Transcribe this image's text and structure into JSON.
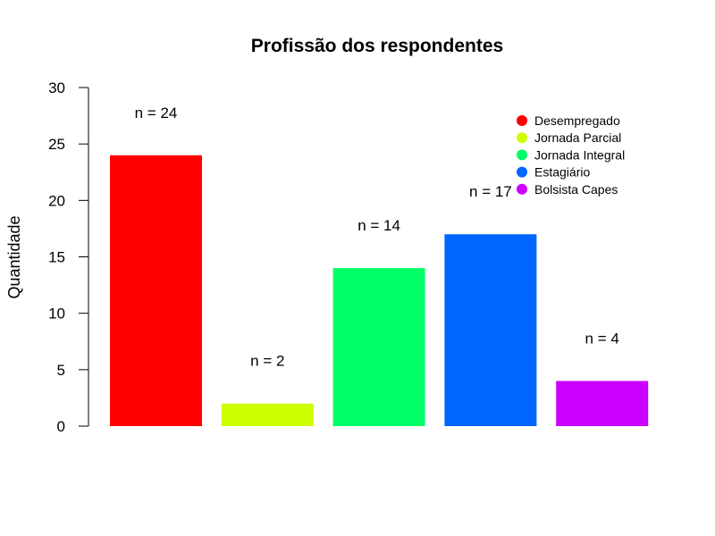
{
  "chart_data": {
    "type": "bar",
    "title": "Profissão dos respondentes",
    "xlabel": "",
    "ylabel": "Quantidade",
    "ylim": [
      0,
      30
    ],
    "yticks": [
      0,
      5,
      10,
      15,
      20,
      25,
      30
    ],
    "categories": [
      "Desempregado",
      "Jornada Parcial",
      "Jornada Integral",
      "Estagiário",
      "Bolsista Capes"
    ],
    "values": [
      24,
      2,
      14,
      17,
      4
    ],
    "data_labels": [
      "n = 24",
      "n = 2",
      "n = 14",
      "n = 17",
      "n = 4"
    ],
    "colors": [
      "#ff0000",
      "#ccff00",
      "#00ff66",
      "#0066ff",
      "#cc00ff"
    ],
    "legend": {
      "placement": "top-right",
      "entries": [
        "Desempregado",
        "Jornada Parcial",
        "Jornada Integral",
        "Estagiário",
        "Bolsista Capes"
      ]
    },
    "grid": false
  }
}
